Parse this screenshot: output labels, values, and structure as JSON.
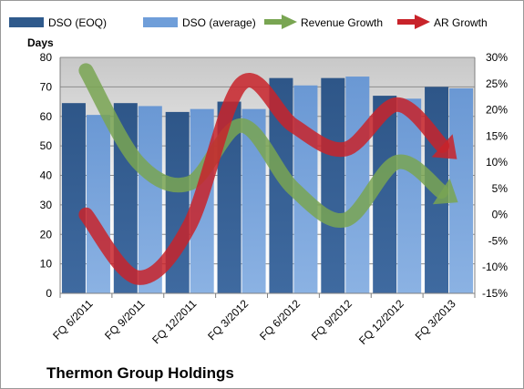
{
  "chart_data": {
    "type": "bar",
    "title": "Thermon Group Holdings",
    "ylabel": "Days",
    "y2label": "",
    "ylim": [
      0,
      80
    ],
    "y2lim": [
      -15,
      30
    ],
    "yticks": [
      "0",
      "10",
      "20",
      "30",
      "40",
      "50",
      "60",
      "70",
      "80"
    ],
    "y2ticks": [
      "-15%",
      "-10%",
      "-5%",
      "0%",
      "5%",
      "10%",
      "15%",
      "20%",
      "25%",
      "30%"
    ],
    "grid": true,
    "legend_placement": "top",
    "categories": [
      "FQ 6/2011",
      "FQ 9/2011",
      "FQ 12/2011",
      "FQ 3/2012",
      "FQ 6/2012",
      "FQ 9/2012",
      "FQ 12/2012",
      "FQ 3/2013"
    ],
    "series": [
      {
        "name": "DSO (EOQ)",
        "type": "bar",
        "axis": "left",
        "color": "#2f5a8c",
        "values": [
          64.5,
          64.5,
          61.5,
          65,
          73,
          73,
          67,
          70
        ]
      },
      {
        "name": "DSO (average)",
        "type": "bar",
        "axis": "left",
        "color": "#6f9ed9",
        "values": [
          60.5,
          63.5,
          62.5,
          62.5,
          70.5,
          73.5,
          66,
          69.5
        ]
      },
      {
        "name": "Revenue Growth",
        "type": "line",
        "axis": "right",
        "color": "#79a552",
        "values": [
          27.5,
          10,
          6,
          17,
          5,
          -1,
          10,
          3.5
        ]
      },
      {
        "name": "AR Growth",
        "type": "line",
        "axis": "right",
        "color": "#c8232a",
        "values": [
          0,
          -12,
          -2,
          25,
          17,
          12.5,
          21,
          12
        ]
      }
    ]
  }
}
